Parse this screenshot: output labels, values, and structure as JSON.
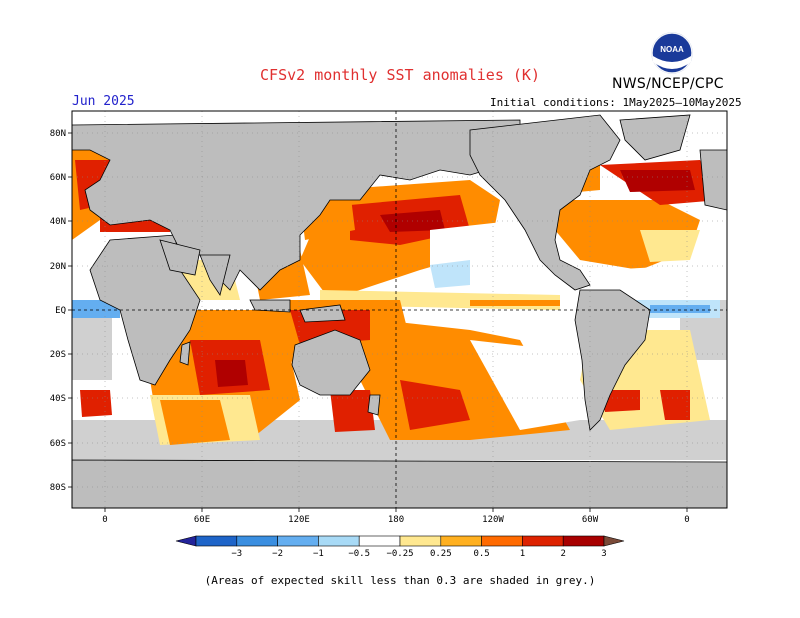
{
  "header": {
    "title": "CFSv2 monthly SST anomalies (K)",
    "agency": "NWS/NCEP/CPC",
    "valid_month": "Jun 2025",
    "initial_conditions": "Initial conditions: 1May2025–10May2025"
  },
  "map": {
    "lat_labels": [
      "80N",
      "60N",
      "40N",
      "20N",
      "EQ",
      "20S",
      "40S",
      "60S",
      "80S"
    ],
    "lon_labels": [
      "0",
      "60E",
      "120E",
      "180",
      "120W",
      "60W",
      "0"
    ],
    "land_color": "#bdbdbd",
    "ocean_neutral_color": "#ffffff",
    "low_skill_shading": "grey",
    "logo_text": "NOAA"
  },
  "colorbar": {
    "labels": [
      "−3",
      "−2",
      "−1",
      "−0.5",
      "−0.25",
      "0.25",
      "0.5",
      "1",
      "2",
      "3"
    ],
    "colors": [
      "#23239a",
      "#1e64c8",
      "#3a8ee0",
      "#64aef0",
      "#a8daf6",
      "#ffffff",
      "#ffe890",
      "#ffb020",
      "#ff6a00",
      "#dd2200",
      "#a80000",
      "#7a4a38"
    ]
  },
  "footnote": "(Areas of expected skill less than 0.3 are shaded in grey.)"
}
